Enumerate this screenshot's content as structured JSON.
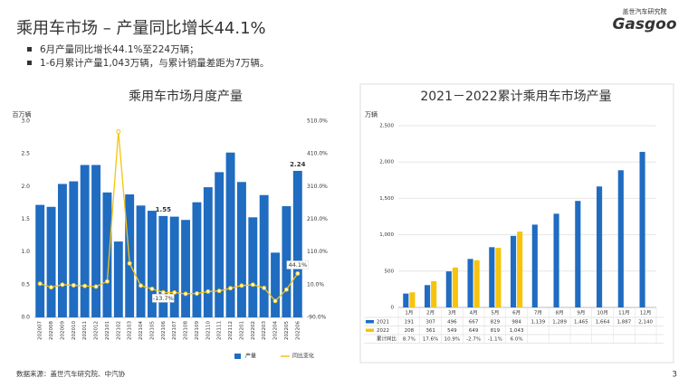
{
  "header": {
    "title": "乘用车市场 – 产量同比增长44.1%",
    "bullets": [
      "6月产量同比增长44.1%至224万辆；",
      "1-6月累计产量1,043万辆，与累计销量差距为7万辆。"
    ],
    "logo_cn": "盖世汽车研究院",
    "logo_en": "Gasgoo"
  },
  "footer": {
    "source": "数据来源：盖世汽车研究院、中汽协",
    "page": "3"
  },
  "chart_data": [
    {
      "type": "bar",
      "title": "乘用车市场月度产量",
      "y_label": "百万辆",
      "categories": [
        "202007",
        "202008",
        "202009",
        "202010",
        "202011",
        "202012",
        "202101",
        "202102",
        "202103",
        "202104",
        "202105",
        "202106",
        "202107",
        "202108",
        "202109",
        "202110",
        "202111",
        "202112",
        "202201",
        "202202",
        "202203",
        "202204",
        "202205",
        "202206"
      ],
      "series": [
        {
          "name": "产量",
          "type": "bar",
          "color": "#1f6cc1",
          "values": [
            1.72,
            1.69,
            2.04,
            2.08,
            2.33,
            2.33,
            1.91,
            1.16,
            1.88,
            1.71,
            1.63,
            1.55,
            1.54,
            1.49,
            1.76,
            1.99,
            2.22,
            2.52,
            2.07,
            1.53,
            1.87,
            0.99,
            1.7,
            2.24
          ],
          "value_labels": [
            null,
            null,
            null,
            null,
            null,
            null,
            null,
            null,
            null,
            null,
            null,
            "1.55",
            null,
            null,
            null,
            null,
            null,
            null,
            null,
            null,
            null,
            null,
            null,
            "2.24"
          ]
        },
        {
          "name": "同比变化",
          "type": "line",
          "axis": "y2",
          "color": "#f6c40f",
          "values": [
            13,
            2,
            10,
            8,
            6,
            4,
            20,
            478,
            75,
            7,
            -3,
            -13.7,
            -14,
            -18,
            -17,
            -11,
            -9,
            -1,
            7,
            10,
            0,
            -40,
            -5,
            44.1
          ],
          "value_labels": [
            null,
            null,
            null,
            null,
            null,
            null,
            null,
            null,
            null,
            null,
            null,
            "-13.7%",
            null,
            null,
            null,
            null,
            null,
            null,
            null,
            null,
            null,
            null,
            null,
            "44.1%"
          ]
        }
      ],
      "ylim": [
        0,
        3
      ],
      "yticks": [
        {
          "value": 0,
          "label": "0.0"
        },
        0.5,
        {
          "value": 1,
          "label": "1.0"
        },
        1.5,
        {
          "value": 2,
          "label": "2.0"
        },
        2.5,
        {
          "value": 3,
          "label": "3.0"
        }
      ],
      "y2lim": [
        -90,
        510
      ],
      "y2ticks": [
        {
          "value": -90,
          "label": "-90.0%"
        },
        {
          "value": 10,
          "label": "10.0%"
        },
        {
          "value": 110,
          "label": "110.0%"
        },
        {
          "value": 210,
          "label": "210.0%"
        },
        {
          "value": 310,
          "label": "310.0%"
        },
        {
          "value": 410,
          "label": "410.0%"
        },
        {
          "value": 510,
          "label": "510.0%"
        }
      ],
      "grid": false,
      "legend": "bottom"
    },
    {
      "type": "bar",
      "title": "2021－2022累计乘用车市场产量",
      "y_label": "万辆",
      "categories": [
        "1月",
        "2月",
        "3月",
        "4月",
        "5月",
        "6月",
        "7月",
        "8月",
        "9月",
        "10月",
        "11月",
        "12月"
      ],
      "series": [
        {
          "name": "2021",
          "type": "bar",
          "color": "#1f6cc1",
          "values": [
            191,
            307,
            496,
            667,
            829,
            984,
            1139,
            1289,
            1465,
            1664,
            1887,
            2140
          ],
          "value_labels": [
            "191",
            "307",
            "496",
            "667",
            "829",
            "984",
            "1,139",
            "1,289",
            "1,465",
            "1,664",
            "1,887",
            "2,140"
          ]
        },
        {
          "name": "2022",
          "type": "bar",
          "color": "#f6c40f",
          "values": [
            208,
            361,
            549,
            649,
            819,
            1043,
            null,
            null,
            null,
            null,
            null,
            null
          ],
          "value_labels": [
            "208",
            "361",
            "549",
            "649",
            "819",
            "1,043",
            null,
            null,
            null,
            null,
            null,
            null
          ]
        }
      ],
      "growth": {
        "name": "累计同比",
        "values": [
          8.7,
          17.6,
          10.9,
          -2.7,
          -1.1,
          6.0
        ],
        "value_labels": [
          "8.7%",
          "17.6%",
          "10.9%",
          "-2.7%",
          "-1.1%",
          "6.0%"
        ]
      },
      "ylim": [
        0,
        2500
      ],
      "yticks": [
        0,
        500,
        {
          "value": 1000,
          "label": "1,000"
        },
        {
          "value": 1500,
          "label": "1,500"
        },
        {
          "value": 2000,
          "label": "2,000"
        },
        {
          "value": 2500,
          "label": "2,500"
        }
      ],
      "grid": true,
      "legend": "table"
    }
  ]
}
